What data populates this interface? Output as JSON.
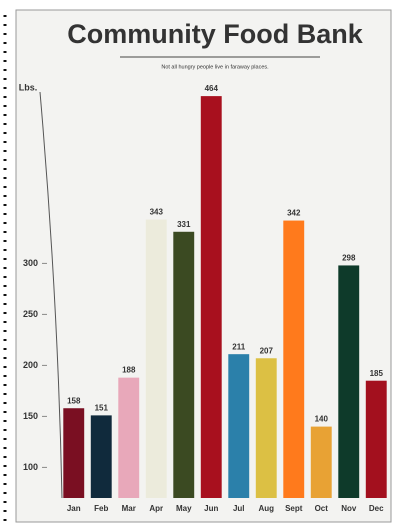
{
  "chart_data": {
    "type": "bar",
    "title": "Community Food Bank",
    "subtitle": "Not all hungry people live in faraway places.",
    "ylabel": "Lbs.",
    "categories": [
      "Jan",
      "Feb",
      "Mar",
      "Apr",
      "May",
      "Jun",
      "Jul",
      "Aug",
      "Sept",
      "Oct",
      "Nov",
      "Dec"
    ],
    "values": [
      158,
      151,
      188,
      343,
      331,
      464,
      211,
      207,
      342,
      140,
      298,
      185
    ],
    "colors": [
      "#7a0f22",
      "#102a3c",
      "#e8a8ba",
      "#ecebdc",
      "#3b4a22",
      "#a8101e",
      "#2b80aa",
      "#dcc044",
      "#ff7a1c",
      "#e8a234",
      "#0e3a2a",
      "#a3101e"
    ],
    "ylim": [
      70,
      470
    ],
    "yticks": [
      100,
      150,
      200,
      250,
      300
    ]
  }
}
